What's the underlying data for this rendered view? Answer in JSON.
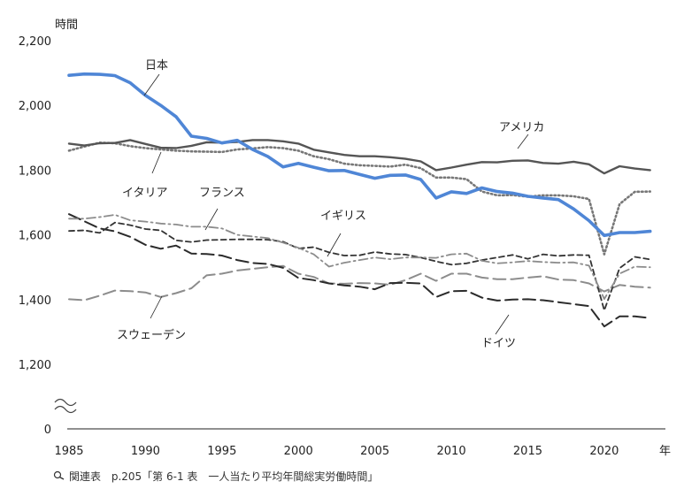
{
  "chart_data": {
    "type": "line",
    "ylabel": "時間",
    "xlabel": "年",
    "ylim": [
      0,
      2200
    ],
    "axis_break": [
      0,
      1200
    ],
    "yticks": [
      "0",
      "1,200",
      "1,400",
      "1,600",
      "1,800",
      "2,000",
      "2,200"
    ],
    "ytick_values": [
      0,
      1200,
      1400,
      1600,
      1800,
      2000,
      2200
    ],
    "xticks": [
      "1985",
      "1990",
      "1995",
      "2000",
      "2005",
      "2010",
      "2015",
      "2020"
    ],
    "xtick_values": [
      1985,
      1990,
      1995,
      2000,
      2005,
      2010,
      2015,
      2020
    ],
    "xlim": [
      1985,
      2024
    ],
    "x": [
      1985,
      1986,
      1987,
      1988,
      1989,
      1990,
      1991,
      1992,
      1993,
      1994,
      1995,
      1996,
      1997,
      1998,
      1999,
      2000,
      2001,
      2002,
      2003,
      2004,
      2005,
      2006,
      2007,
      2008,
      2009,
      2010,
      2011,
      2012,
      2013,
      2014,
      2015,
      2016,
      2017,
      2018,
      2019,
      2020,
      2021,
      2022,
      2023
    ],
    "series": [
      {
        "name": "日本",
        "color": "#4f86d6",
        "style": "solid-bold",
        "values": [
          2093,
          2097,
          2096,
          2092,
          2070,
          2031,
          2000,
          1965,
          1905,
          1898,
          1884,
          1892,
          1864,
          1842,
          1810,
          1821,
          1809,
          1798,
          1799,
          1787,
          1775,
          1784,
          1785,
          1771,
          1714,
          1733,
          1728,
          1745,
          1734,
          1729,
          1719,
          1714,
          1709,
          1680,
          1644,
          1598,
          1607,
          1607,
          1611
        ]
      },
      {
        "name": "アメリカ",
        "color": "#555555",
        "style": "solid",
        "values": [
          1882,
          1876,
          1883,
          1884,
          1893,
          1881,
          1869,
          1868,
          1875,
          1886,
          1885,
          1887,
          1893,
          1893,
          1889,
          1882,
          1863,
          1855,
          1847,
          1843,
          1843,
          1840,
          1835,
          1827,
          1800,
          1808,
          1817,
          1825,
          1824,
          1829,
          1830,
          1822,
          1820,
          1826,
          1818,
          1790,
          1812,
          1805,
          1800
        ]
      },
      {
        "name": "イタリア",
        "color": "#777777",
        "style": "dotted",
        "values": [
          1860,
          1873,
          1885,
          1883,
          1874,
          1868,
          1864,
          1860,
          1858,
          1857,
          1856,
          1864,
          1867,
          1871,
          1868,
          1860,
          1843,
          1834,
          1820,
          1815,
          1813,
          1811,
          1817,
          1806,
          1777,
          1777,
          1772,
          1734,
          1722,
          1723,
          1718,
          1722,
          1722,
          1719,
          1711,
          1540,
          1695,
          1733,
          1734
        ]
      },
      {
        "name": "フランス",
        "color": "#8c8c8c",
        "style": "dashdot",
        "values": [
          1650,
          1650,
          1655,
          1662,
          1645,
          1641,
          1635,
          1632,
          1625,
          1625,
          1620,
          1600,
          1595,
          1590,
          1576,
          1560,
          1540,
          1502,
          1514,
          1522,
          1530,
          1525,
          1530,
          1530,
          1529,
          1540,
          1542,
          1520,
          1512,
          1515,
          1519,
          1516,
          1514,
          1515,
          1505,
          1402,
          1480,
          1502,
          1500
        ]
      },
      {
        "name": "イギリス",
        "color": "#333333",
        "style": "dashed-fine",
        "values": [
          1612,
          1614,
          1606,
          1638,
          1630,
          1618,
          1614,
          1583,
          1578,
          1584,
          1585,
          1586,
          1586,
          1585,
          1579,
          1558,
          1562,
          1546,
          1536,
          1537,
          1547,
          1541,
          1539,
          1530,
          1518,
          1508,
          1512,
          1522,
          1530,
          1538,
          1526,
          1540,
          1535,
          1538,
          1537,
          1367,
          1497,
          1532,
          1524
        ]
      },
      {
        "name": "スウェーデン",
        "color": "#8c8c8c",
        "style": "dashed-long",
        "values": [
          1401,
          1398,
          1412,
          1428,
          1426,
          1422,
          1408,
          1420,
          1435,
          1475,
          1480,
          1490,
          1495,
          1500,
          1504,
          1480,
          1470,
          1450,
          1449,
          1451,
          1450,
          1446,
          1460,
          1480,
          1458,
          1480,
          1480,
          1468,
          1463,
          1463,
          1468,
          1472,
          1462,
          1460,
          1450,
          1425,
          1445,
          1440,
          1437
        ]
      },
      {
        "name": "ドイツ",
        "color": "#2b2b2b",
        "style": "dashed-long",
        "values": [
          1664,
          1642,
          1620,
          1611,
          1594,
          1569,
          1557,
          1567,
          1542,
          1541,
          1536,
          1522,
          1513,
          1510,
          1498,
          1467,
          1460,
          1450,
          1444,
          1440,
          1432,
          1451,
          1452,
          1450,
          1408,
          1426,
          1427,
          1406,
          1397,
          1400,
          1401,
          1398,
          1392,
          1386,
          1380,
          1317,
          1348,
          1348,
          1343
        ]
      }
    ]
  },
  "footer": {
    "icon": "magnifier-icon",
    "prefix": "関連表",
    "text": "p.205「第 6-1 表　一人当たり平均年間総実労働時間」"
  }
}
